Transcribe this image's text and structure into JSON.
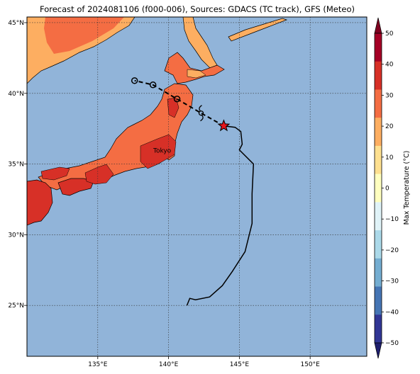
{
  "title": "Forecast of 2024081106 (f000-006), Sources: GDACS (TC track), GFS (Meteo)",
  "map": {
    "lon_range": [
      130,
      154
    ],
    "lat_range": [
      21.4,
      45.4
    ],
    "lon_ticks": [
      {
        "value": 135,
        "label": "135°E"
      },
      {
        "value": 140,
        "label": "140°E"
      },
      {
        "value": 145,
        "label": "145°E"
      },
      {
        "value": 150,
        "label": "150°E"
      }
    ],
    "lat_ticks": [
      {
        "value": 25,
        "label": "25°N"
      },
      {
        "value": 30,
        "label": "30°N"
      },
      {
        "value": 35,
        "label": "35°N"
      },
      {
        "value": 40,
        "label": "40°N"
      },
      {
        "value": 45,
        "label": "45°N"
      }
    ],
    "ocean_color": "#91b4d9",
    "city": {
      "name": "Tokyo",
      "lon": 139.7,
      "lat": 35.7
    }
  },
  "colorbar": {
    "label": "Max Temperature (°C)",
    "ticks": [
      "50",
      "40",
      "30",
      "20",
      "10",
      "0",
      "−10",
      "−20",
      "−30",
      "−40",
      "−50"
    ],
    "bands_top_to_bottom": [
      "#a50026",
      "#d73027",
      "#f46d43",
      "#fdae61",
      "#fee090",
      "#ffffbf",
      "#e0f3f8",
      "#abd9e9",
      "#74add1",
      "#4575b4",
      "#313695"
    ],
    "extend_top_color": "#7f0020",
    "extend_bottom_color": "#1f1f6e"
  },
  "track": {
    "past_track": [
      [
        141.3,
        25.0
      ],
      [
        141.5,
        25.5
      ],
      [
        141.9,
        25.4
      ],
      [
        142.9,
        25.6
      ],
      [
        143.8,
        26.4
      ],
      [
        144.5,
        27.4
      ],
      [
        145.4,
        28.8
      ],
      [
        145.9,
        30.8
      ],
      [
        145.9,
        32.9
      ],
      [
        146.0,
        35.0
      ],
      [
        145.0,
        36.0
      ],
      [
        145.2,
        36.4
      ],
      [
        145.1,
        37.3
      ],
      [
        144.7,
        37.6
      ],
      [
        143.9,
        37.7
      ]
    ],
    "forecast_track": [
      [
        143.9,
        37.7
      ],
      [
        142.3,
        38.6
      ],
      [
        140.6,
        39.6
      ],
      [
        138.9,
        40.6
      ],
      [
        137.6,
        40.9
      ]
    ],
    "forecast_points": [
      [
        142.3,
        38.6
      ],
      [
        140.6,
        39.6
      ],
      [
        138.9,
        40.6
      ],
      [
        137.6,
        40.9
      ]
    ],
    "current_position": [
      143.9,
      37.7
    ],
    "storm_symbol_position": [
      142.3,
      38.6
    ]
  }
}
